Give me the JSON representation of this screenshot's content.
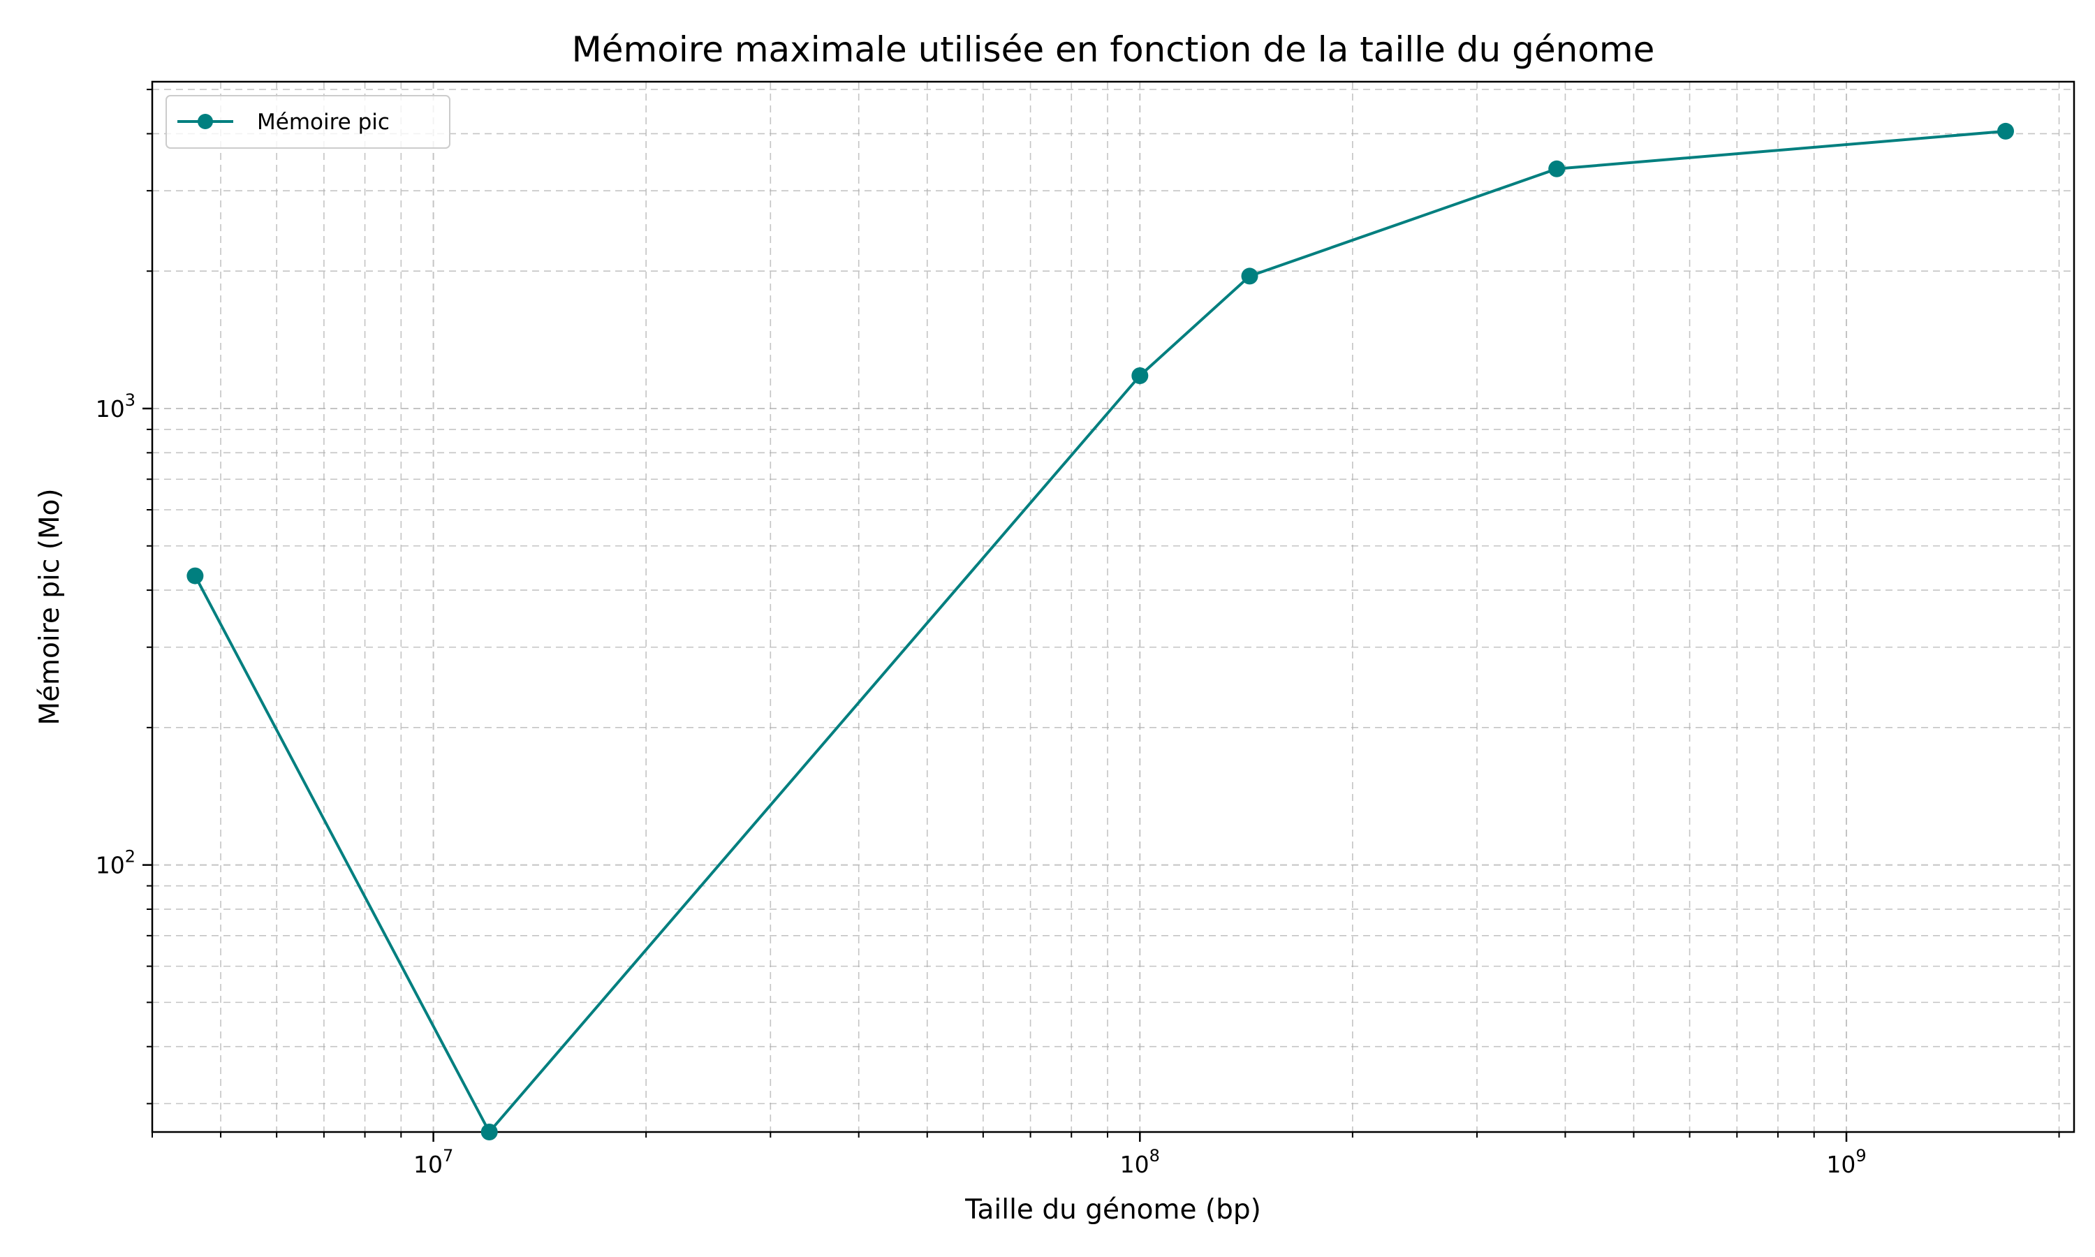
{
  "chart_data": {
    "type": "line",
    "title": "Mémoire maximale utilisée en fonction de la taille du génome",
    "xlabel": "Taille du génome (bp)",
    "ylabel": "Mémoire pic (Mo)",
    "xscale": "log",
    "yscale": "log",
    "xlim": [
      4000000,
      2100000000
    ],
    "ylim": [
      26,
      5200
    ],
    "grid": true,
    "grid_style": "dashed",
    "legend_position": "top-left",
    "x_ticks": [
      {
        "value": 10000000,
        "base": "10",
        "exp": "7"
      },
      {
        "value": 100000000,
        "base": "10",
        "exp": "8"
      },
      {
        "value": 1000000000,
        "base": "10",
        "exp": "9"
      }
    ],
    "y_ticks": [
      {
        "value": 100,
        "base": "10",
        "exp": "2"
      },
      {
        "value": 1000,
        "base": "10",
        "exp": "3"
      }
    ],
    "series": [
      {
        "name": "Mémoire pic",
        "color": "#007f7f",
        "marker": "circle",
        "x": [
          4600000,
          12000000,
          100000000,
          143000000,
          389000000,
          1680000000
        ],
        "y": [
          430,
          26,
          1180,
          1950,
          3350,
          4050
        ]
      }
    ]
  }
}
